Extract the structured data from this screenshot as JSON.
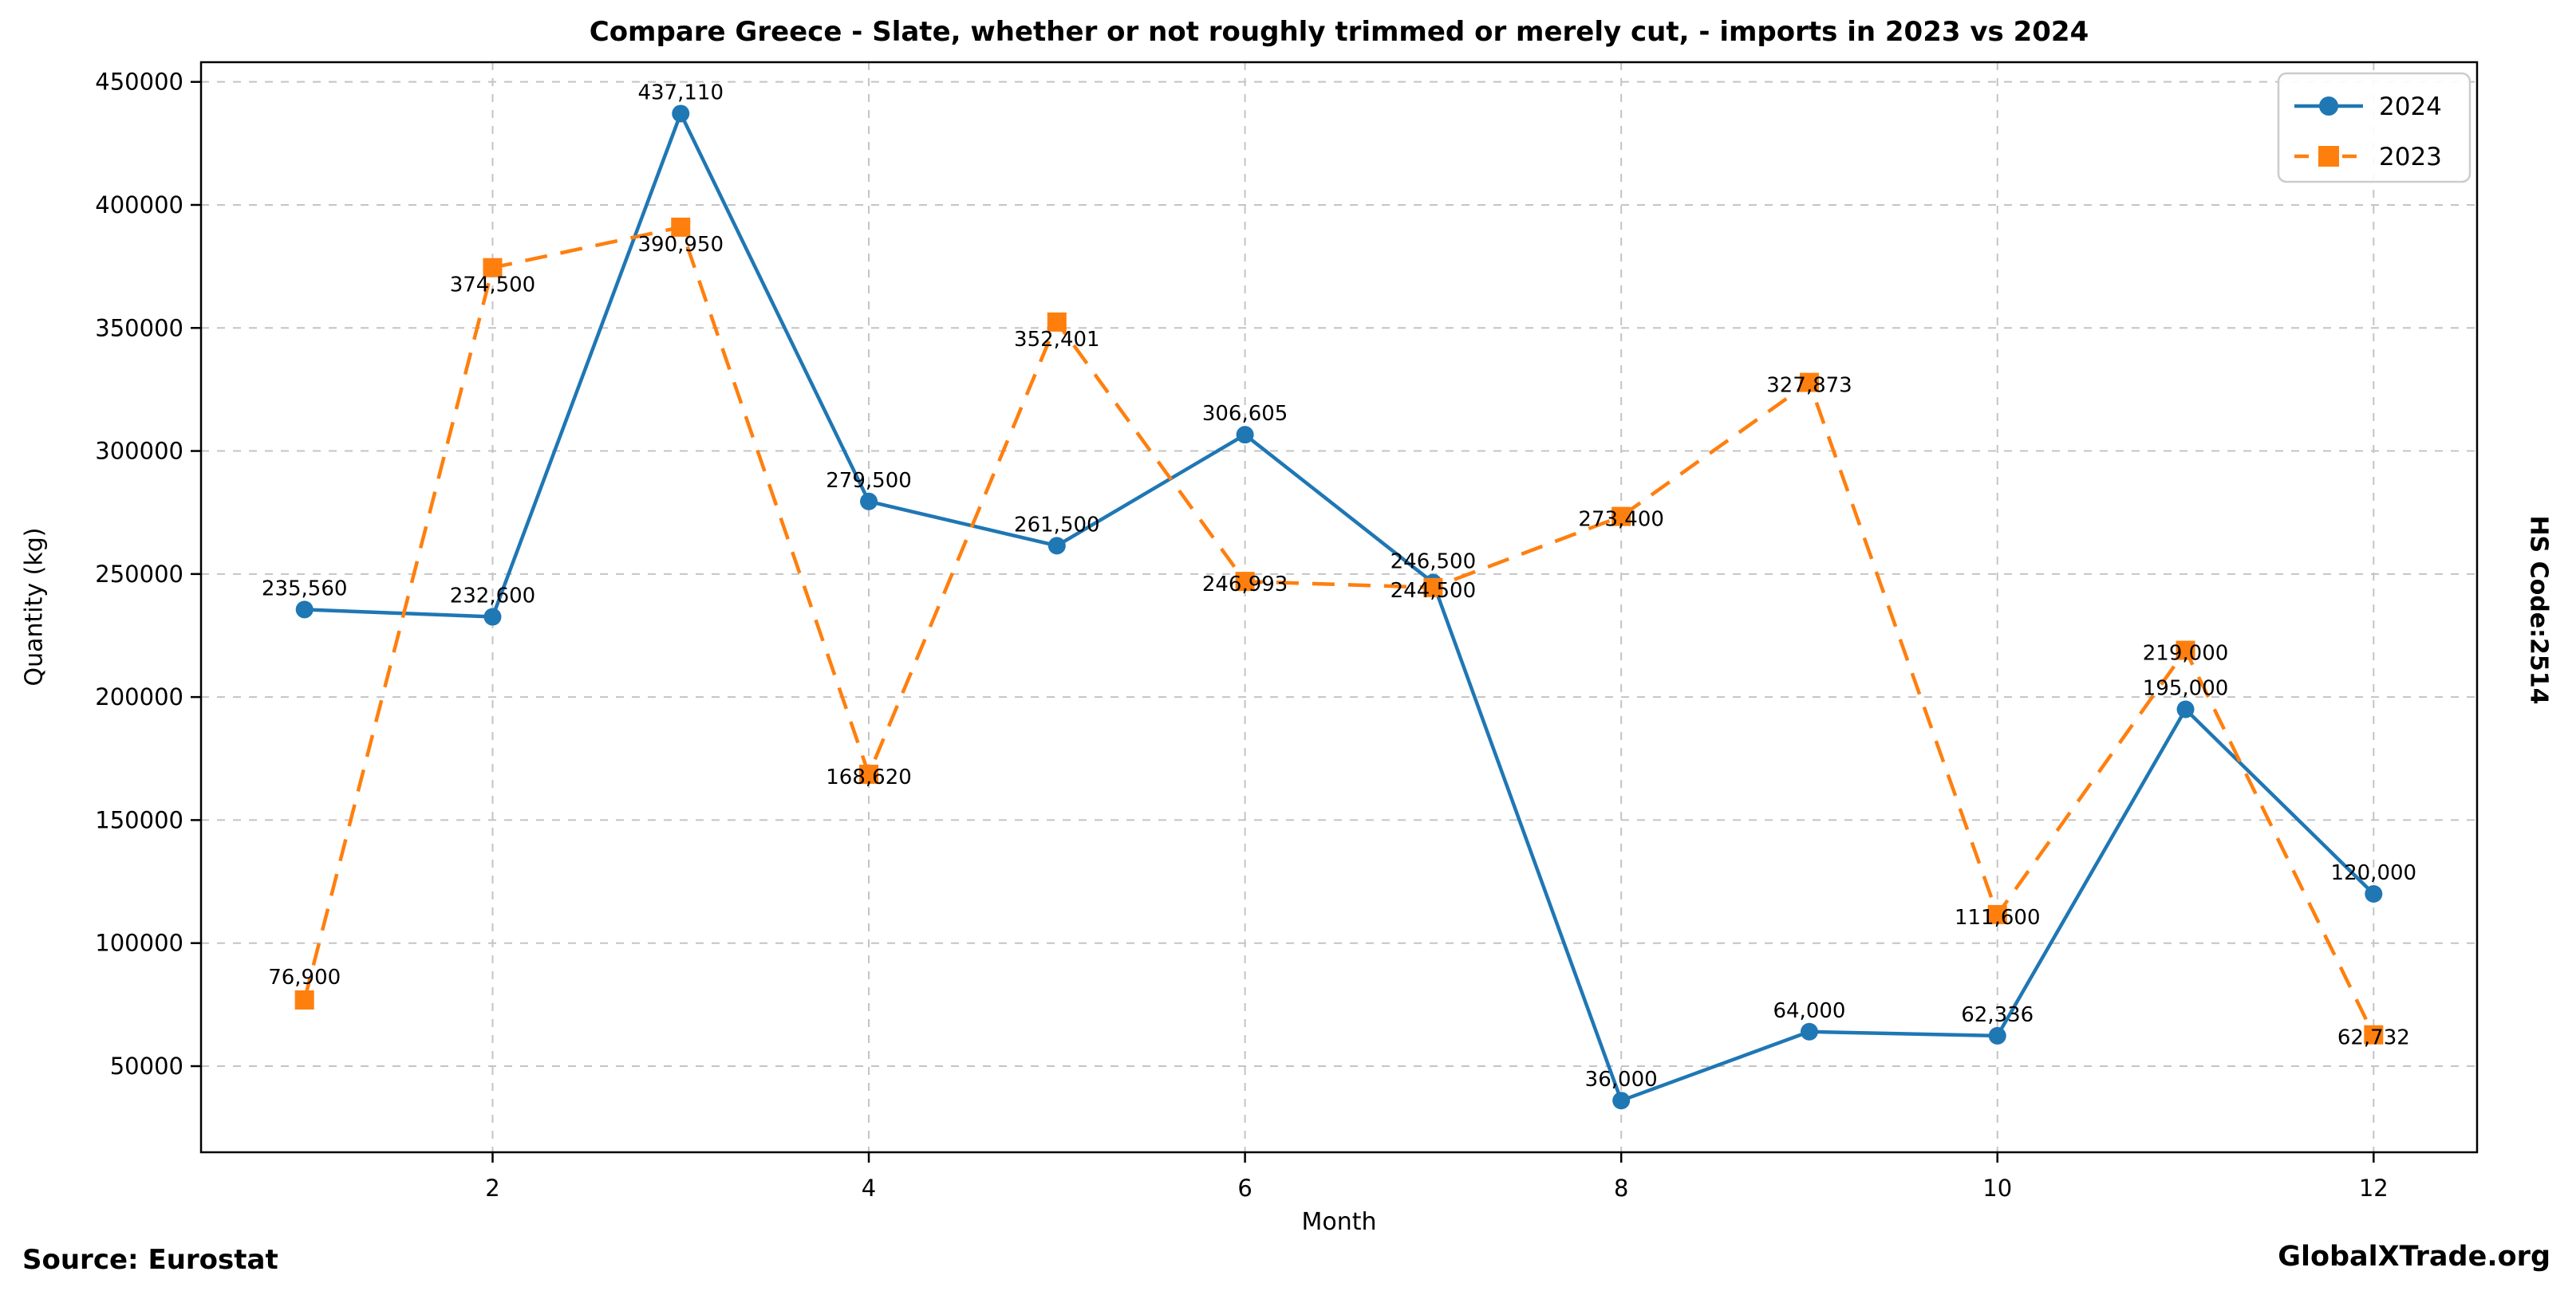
{
  "side_label": "HS Code:2514",
  "footer": {
    "source": "Source: Eurostat",
    "brand": "GlobalXTrade.org"
  },
  "chart_data": {
    "type": "line",
    "title": "Compare Greece - Slate, whether or not roughly trimmed or merely cut, - imports in 2023 vs 2024",
    "xlabel": "Month",
    "ylabel": "Quantity (kg)",
    "x": [
      1,
      2,
      3,
      4,
      5,
      6,
      7,
      8,
      9,
      10,
      11,
      12
    ],
    "xticks": [
      2,
      4,
      6,
      8,
      10,
      12
    ],
    "yticks": [
      50000,
      100000,
      150000,
      200000,
      250000,
      300000,
      350000,
      400000,
      450000
    ],
    "xlim": [
      0.45,
      12.55
    ],
    "ylim": [
      15000,
      458000
    ],
    "grid": true,
    "grid_style": "dashed",
    "legend_position": "top-right",
    "colors": {
      "blue_2024": "#1f77b4",
      "orange_2023": "#ff7f0e",
      "grid": "#c4c4c4",
      "spine": "#000000",
      "text": "#000000",
      "legend_border": "#cccccc"
    },
    "series": [
      {
        "name": "2024",
        "color": "#1f77b4",
        "line": "solid",
        "marker": "circle",
        "values": [
          235560,
          232600,
          437110,
          279500,
          261500,
          306605,
          246500,
          36000,
          64000,
          62336,
          195000,
          120000
        ],
        "label_dy": [
          -18,
          -18,
          -18,
          -18,
          -18,
          -18,
          -18,
          -18,
          -18,
          -18,
          -18,
          -18
        ]
      },
      {
        "name": "2023",
        "color": "#ff7f0e",
        "line": "dashed",
        "marker": "square",
        "values": [
          76900,
          374500,
          390950,
          168620,
          352401,
          246993,
          244500,
          273400,
          327873,
          111600,
          219000,
          62732
        ],
        "label_dy": [
          -20,
          30,
          30,
          12,
          30,
          12,
          12,
          12,
          12,
          12,
          12,
          12
        ]
      }
    ]
  }
}
